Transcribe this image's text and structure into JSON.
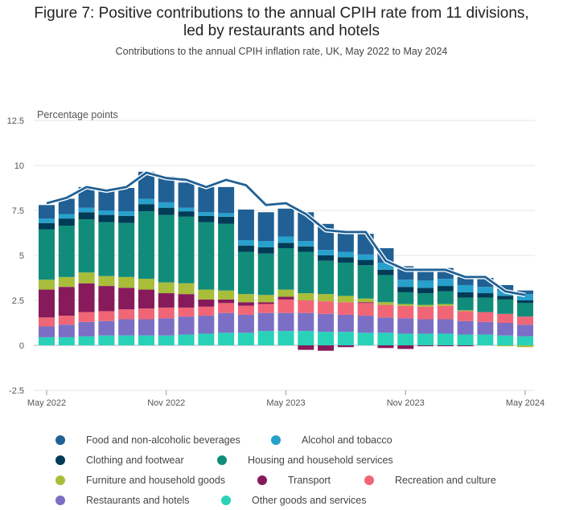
{
  "title_line1": "Figure 7: Positive contributions to the annual CPIH rate from 11 divisions,",
  "title_line2": "led by restaurants and hotels",
  "subtitle": "Contributions to the annual CPIH inflation rate, UK, May 2022 to May 2024",
  "chart_data": {
    "type": "bar",
    "stacked": true,
    "ylabel": "Percentage points",
    "ylim": [
      -2.5,
      12.5
    ],
    "yticks": [
      "12.5",
      "10",
      "7.5",
      "5",
      "2.5",
      "0",
      "-2.5"
    ],
    "ytick_values": [
      12.5,
      10,
      7.5,
      5,
      2.5,
      0,
      -2.5
    ],
    "grid": true,
    "legend_position": "bottom",
    "x_tick_labels": [
      {
        "index": 0,
        "label": "May 2022"
      },
      {
        "index": 6,
        "label": "Nov 2022"
      },
      {
        "index": 12,
        "label": "May 2023"
      },
      {
        "index": 18,
        "label": "Nov 2023"
      },
      {
        "index": 24,
        "label": "May 2024"
      }
    ],
    "categories": [
      "May 2022",
      "Jun 2022",
      "Jul 2022",
      "Aug 2022",
      "Sep 2022",
      "Oct 2022",
      "Nov 2022",
      "Dec 2022",
      "Jan 2023",
      "Feb 2023",
      "Mar 2023",
      "Apr 2023",
      "May 2023",
      "Jun 2023",
      "Jul 2023",
      "Aug 2023",
      "Sep 2023",
      "Oct 2023",
      "Nov 2023",
      "Dec 2023",
      "Jan 2024",
      "Feb 2024",
      "Mar 2024",
      "Apr 2024",
      "May 2024"
    ],
    "series": [
      {
        "name": "Other goods and services",
        "color": "#28d2b9",
        "values": [
          0.45,
          0.45,
          0.5,
          0.55,
          0.55,
          0.55,
          0.55,
          0.6,
          0.65,
          0.7,
          0.7,
          0.8,
          0.8,
          0.8,
          0.75,
          0.75,
          0.7,
          0.7,
          0.65,
          0.65,
          0.65,
          0.6,
          0.6,
          0.55,
          0.5
        ]
      },
      {
        "name": "Restaurants and hotels",
        "color": "#7a6fc4",
        "values": [
          0.6,
          0.7,
          0.8,
          0.8,
          0.9,
          0.9,
          0.95,
          1.0,
          1.0,
          1.1,
          1.0,
          1.0,
          1.0,
          1.0,
          1.0,
          0.95,
          0.95,
          0.85,
          0.85,
          0.8,
          0.8,
          0.75,
          0.7,
          0.7,
          0.65
        ]
      },
      {
        "name": "Recreation and culture",
        "color": "#f06677",
        "values": [
          0.5,
          0.5,
          0.55,
          0.55,
          0.55,
          0.6,
          0.6,
          0.5,
          0.5,
          0.55,
          0.5,
          0.5,
          0.75,
          0.7,
          0.7,
          0.7,
          0.7,
          0.7,
          0.7,
          0.7,
          0.75,
          0.55,
          0.55,
          0.5,
          0.45
        ]
      },
      {
        "name": "Transport",
        "color": "#871a5b",
        "values": [
          1.55,
          1.6,
          1.6,
          1.4,
          1.2,
          1.05,
          0.8,
          0.75,
          0.4,
          0.2,
          0.2,
          0.1,
          0.15,
          -0.25,
          -0.3,
          -0.1,
          0.05,
          -0.15,
          -0.2,
          -0.05,
          -0.05,
          -0.05,
          0.0,
          0.0,
          0.0
        ]
      },
      {
        "name": "Furniture and household goods",
        "color": "#a8bd3a",
        "values": [
          0.55,
          0.55,
          0.6,
          0.55,
          0.6,
          0.6,
          0.6,
          0.6,
          0.55,
          0.5,
          0.45,
          0.4,
          0.4,
          0.4,
          0.4,
          0.35,
          0.2,
          0.15,
          0.1,
          0.1,
          0.1,
          0.05,
          0.0,
          -0.05,
          -0.1
        ]
      },
      {
        "name": "Housing and household services",
        "color": "#118c7b",
        "values": [
          2.8,
          2.85,
          2.95,
          3.0,
          3.0,
          3.75,
          3.75,
          3.7,
          3.75,
          3.7,
          2.35,
          2.3,
          2.3,
          2.3,
          1.85,
          1.85,
          1.85,
          1.5,
          0.65,
          0.65,
          0.7,
          0.7,
          0.8,
          0.8,
          0.75
        ]
      },
      {
        "name": "Clothing and footwear",
        "color": "#003c57",
        "values": [
          0.35,
          0.4,
          0.4,
          0.4,
          0.4,
          0.4,
          0.4,
          0.3,
          0.35,
          0.4,
          0.35,
          0.35,
          0.3,
          0.3,
          0.3,
          0.3,
          0.3,
          0.3,
          0.3,
          0.3,
          0.3,
          0.3,
          0.25,
          0.2,
          0.15
        ]
      },
      {
        "name": "Alcohol and tobacco",
        "color": "#27a0cc",
        "values": [
          0.25,
          0.25,
          0.25,
          0.25,
          0.25,
          0.3,
          0.3,
          0.2,
          0.2,
          0.2,
          0.3,
          0.35,
          0.35,
          0.3,
          0.3,
          0.3,
          0.3,
          0.4,
          0.4,
          0.4,
          0.4,
          0.4,
          0.35,
          0.3,
          0.35
        ]
      },
      {
        "name": "Food and non-alcoholic beverages",
        "color": "#206095",
        "values": [
          0.75,
          0.85,
          1.15,
          1.15,
          1.3,
          1.5,
          1.45,
          1.4,
          1.4,
          1.45,
          1.7,
          1.6,
          1.55,
          1.6,
          1.45,
          1.2,
          1.15,
          0.8,
          0.75,
          0.65,
          0.6,
          0.45,
          0.5,
          0.3,
          0.2
        ]
      }
    ],
    "line_series": {
      "name": "CPIH rate",
      "color": "#206095",
      "values": [
        7.9,
        8.2,
        8.8,
        8.6,
        8.8,
        9.6,
        9.3,
        9.2,
        8.8,
        9.2,
        8.9,
        7.8,
        7.9,
        7.3,
        6.4,
        6.3,
        6.3,
        4.7,
        4.2,
        4.2,
        4.2,
        3.8,
        3.8,
        3.0,
        2.8
      ]
    }
  },
  "legend": [
    {
      "label": "Food and non-alcoholic beverages",
      "color": "#206095"
    },
    {
      "label": "Alcohol and tobacco",
      "color": "#27a0cc"
    },
    {
      "label": "Clothing and footwear",
      "color": "#003c57"
    },
    {
      "label": "Housing and household services",
      "color": "#118c7b"
    },
    {
      "label": "Furniture and household goods",
      "color": "#a8bd3a"
    },
    {
      "label": "Transport",
      "color": "#871a5b"
    },
    {
      "label": "Recreation and culture",
      "color": "#f06677"
    },
    {
      "label": "Restaurants and hotels",
      "color": "#7a6fc4"
    },
    {
      "label": "Other goods and services",
      "color": "#28d2b9"
    }
  ]
}
